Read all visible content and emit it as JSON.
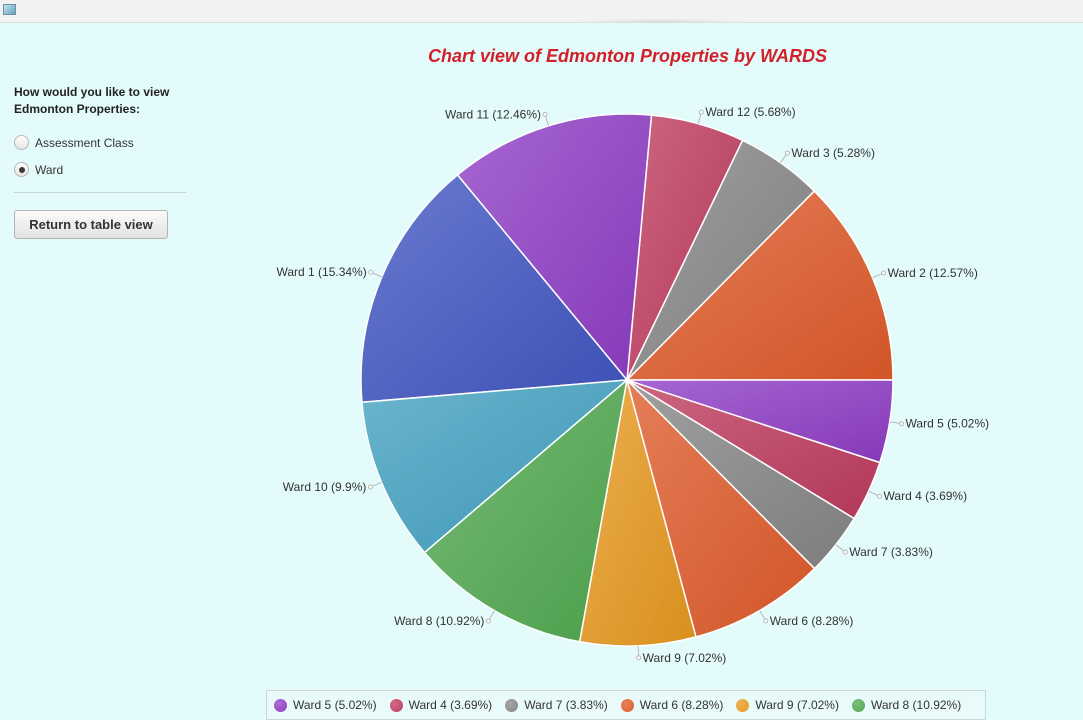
{
  "colors": {
    "background": "#e3fbfa",
    "title": "#d2202a",
    "purple": "#8d3cc4",
    "crimson": "#bd3b5e",
    "gray": "#858585",
    "orange": "#de5a2a",
    "blue": "#4055c1",
    "teal": "#41a0c0",
    "green": "#51a850",
    "amber": "#e6981f"
  },
  "left_panel": {
    "question": "How would you like to view\nEdmonton Properties:",
    "options": [
      {
        "label": "Assessment Class",
        "selected": false
      },
      {
        "label": "Ward",
        "selected": true
      }
    ],
    "return_button": "Return to table view"
  },
  "chart_data": {
    "type": "pie",
    "title": "Chart view of Edmonton Properties by WARDS",
    "legend_position": "bottom",
    "slices": [
      {
        "label": "Ward 2 (12.57%)",
        "value": 12.57,
        "color": "#de5a2a"
      },
      {
        "label": "Ward 3 (5.28%)",
        "value": 5.28,
        "color": "#858585"
      },
      {
        "label": "Ward 12 (5.68%)",
        "value": 5.68,
        "color": "#bd3b5e"
      },
      {
        "label": "Ward 11 (12.46%)",
        "value": 12.46,
        "color": "#8d3cc4"
      },
      {
        "label": "Ward 1 (15.34%)",
        "value": 15.34,
        "color": "#4055c1"
      },
      {
        "label": "Ward 10 (9.9%)",
        "value": 9.9,
        "color": "#41a0c0"
      },
      {
        "label": "Ward 8 (10.92%)",
        "value": 10.92,
        "color": "#51a850"
      },
      {
        "label": "Ward 9 (7.02%)",
        "value": 7.02,
        "color": "#e6981f"
      },
      {
        "label": "Ward 6 (8.28%)",
        "value": 8.28,
        "color": "#de5a2a"
      },
      {
        "label": "Ward 7 (3.83%)",
        "value": 3.83,
        "color": "#858585"
      },
      {
        "label": "Ward 4 (3.69%)",
        "value": 3.69,
        "color": "#bd3b5e"
      },
      {
        "label": "Ward 5 (5.02%)",
        "value": 5.02,
        "color": "#8d3cc4"
      }
    ],
    "legend": [
      {
        "label": "Ward 5 (5.02%)",
        "color": "#8d3cc4"
      },
      {
        "label": "Ward 4 (3.69%)",
        "color": "#bd3b5e"
      },
      {
        "label": "Ward 7 (3.83%)",
        "color": "#858585"
      },
      {
        "label": "Ward 6 (8.28%)",
        "color": "#de5a2a"
      },
      {
        "label": "Ward 9 (7.02%)",
        "color": "#e6981f"
      },
      {
        "label": "Ward 8 (10.92%)",
        "color": "#51a850"
      }
    ]
  }
}
